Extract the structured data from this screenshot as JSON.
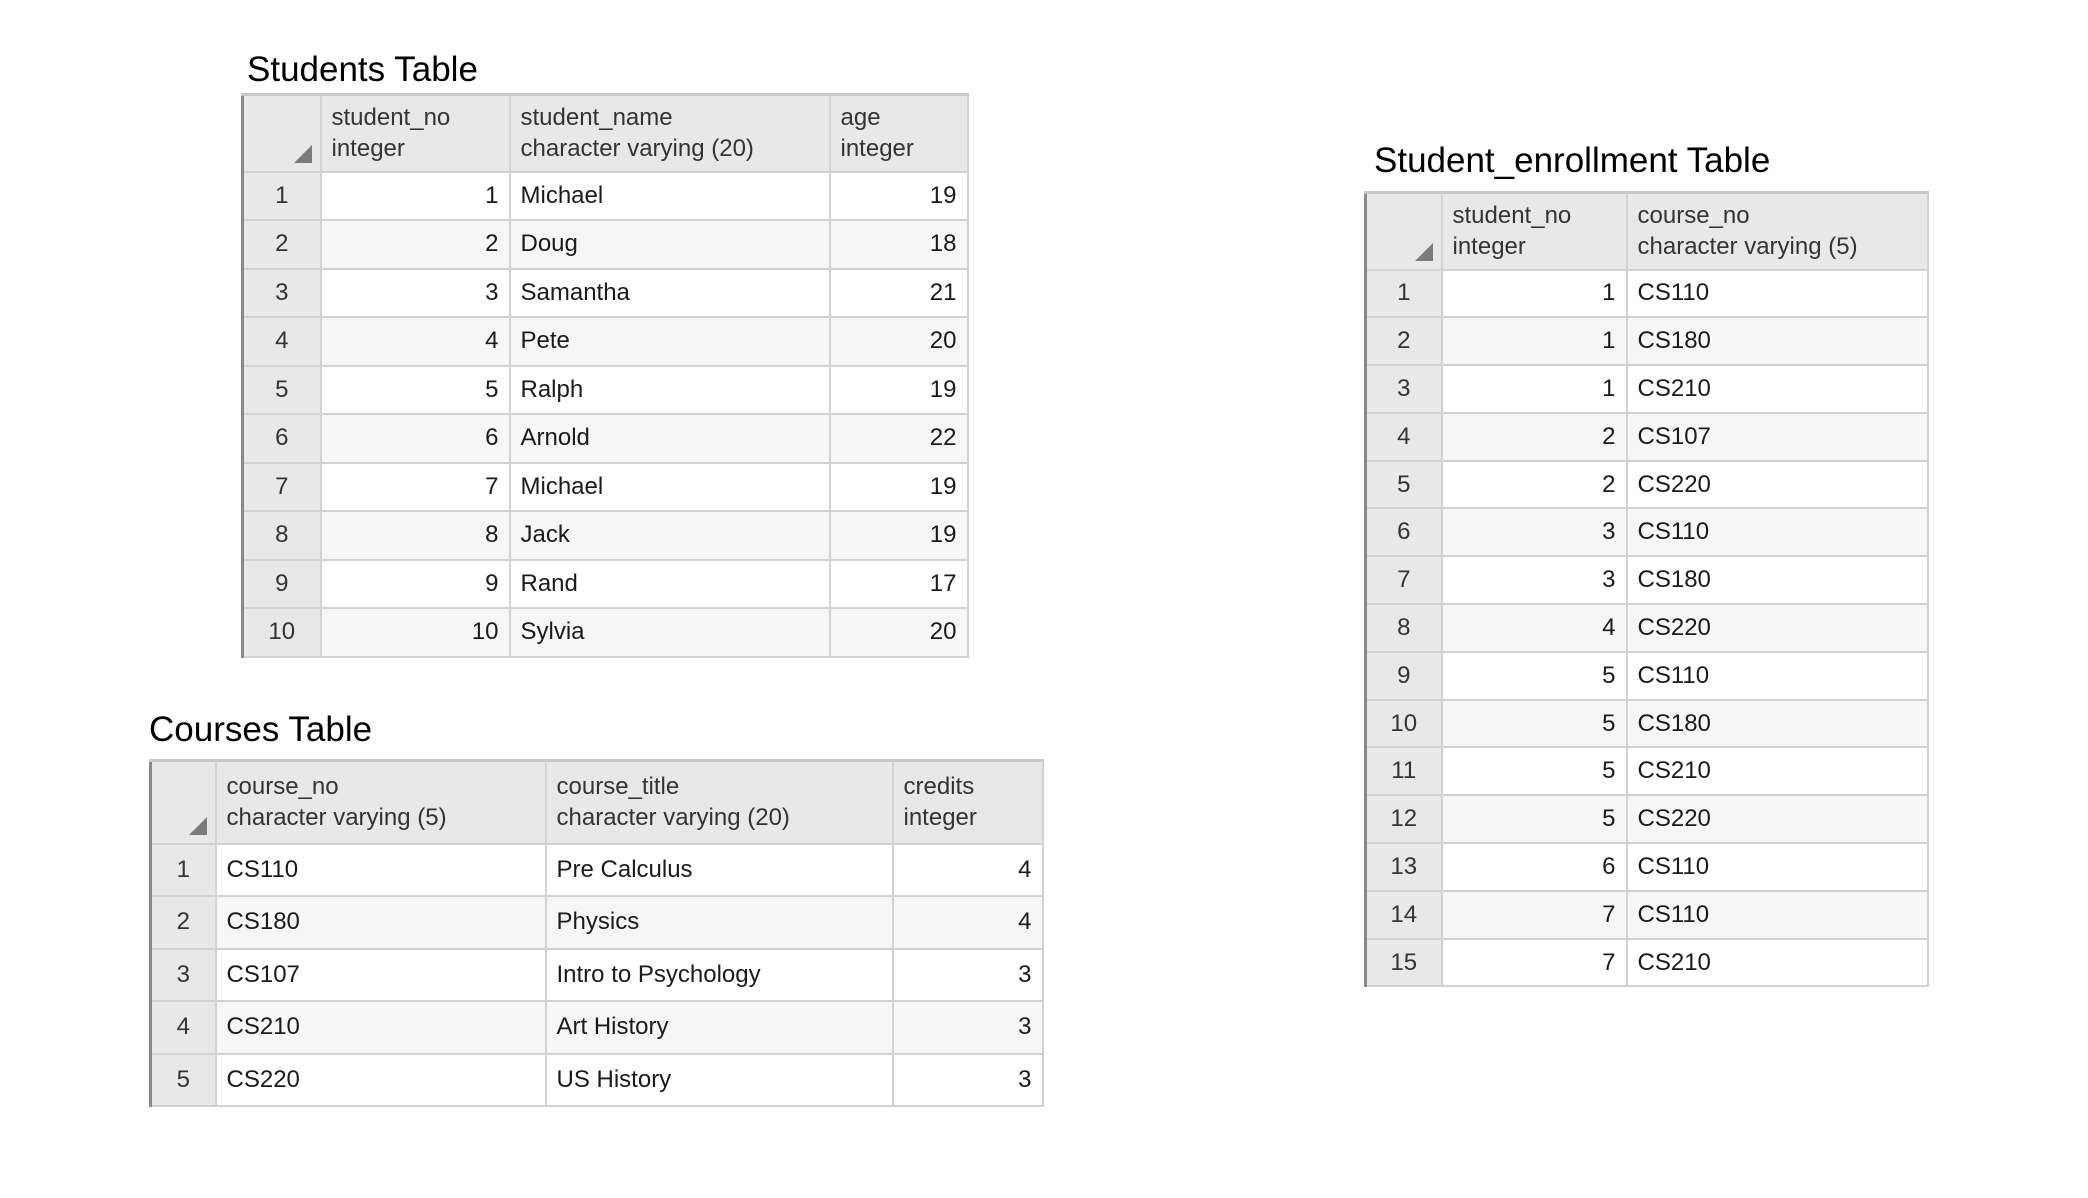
{
  "students": {
    "title": "Students Table",
    "columns": [
      {
        "name": "student_no",
        "type": "integer"
      },
      {
        "name": "student_name",
        "type": "character varying (20)"
      },
      {
        "name": "age",
        "type": "integer"
      }
    ],
    "rows": [
      {
        "row": "1",
        "student_no": "1",
        "student_name": "Michael",
        "age": "19"
      },
      {
        "row": "2",
        "student_no": "2",
        "student_name": "Doug",
        "age": "18"
      },
      {
        "row": "3",
        "student_no": "3",
        "student_name": "Samantha",
        "age": "21"
      },
      {
        "row": "4",
        "student_no": "4",
        "student_name": "Pete",
        "age": "20"
      },
      {
        "row": "5",
        "student_no": "5",
        "student_name": "Ralph",
        "age": "19"
      },
      {
        "row": "6",
        "student_no": "6",
        "student_name": "Arnold",
        "age": "22"
      },
      {
        "row": "7",
        "student_no": "7",
        "student_name": "Michael",
        "age": "19"
      },
      {
        "row": "8",
        "student_no": "8",
        "student_name": "Jack",
        "age": "19"
      },
      {
        "row": "9",
        "student_no": "9",
        "student_name": "Rand",
        "age": "17"
      },
      {
        "row": "10",
        "student_no": "10",
        "student_name": "Sylvia",
        "age": "20"
      }
    ]
  },
  "courses": {
    "title": "Courses Table",
    "columns": [
      {
        "name": "course_no",
        "type": "character varying (5)"
      },
      {
        "name": "course_title",
        "type": "character varying (20)"
      },
      {
        "name": "credits",
        "type": "integer"
      }
    ],
    "rows": [
      {
        "row": "1",
        "course_no": "CS110",
        "course_title": "Pre Calculus",
        "credits": "4"
      },
      {
        "row": "2",
        "course_no": "CS180",
        "course_title": "Physics",
        "credits": "4"
      },
      {
        "row": "3",
        "course_no": "CS107",
        "course_title": "Intro to Psychology",
        "credits": "3"
      },
      {
        "row": "4",
        "course_no": "CS210",
        "course_title": "Art History",
        "credits": "3"
      },
      {
        "row": "5",
        "course_no": "CS220",
        "course_title": "US History",
        "credits": "3"
      }
    ]
  },
  "enrollment": {
    "title": "Student_enrollment Table",
    "columns": [
      {
        "name": "student_no",
        "type": "integer"
      },
      {
        "name": "course_no",
        "type": "character varying (5)"
      }
    ],
    "rows": [
      {
        "row": "1",
        "student_no": "1",
        "course_no": "CS110"
      },
      {
        "row": "2",
        "student_no": "1",
        "course_no": "CS180"
      },
      {
        "row": "3",
        "student_no": "1",
        "course_no": "CS210"
      },
      {
        "row": "4",
        "student_no": "2",
        "course_no": "CS107"
      },
      {
        "row": "5",
        "student_no": "2",
        "course_no": "CS220"
      },
      {
        "row": "6",
        "student_no": "3",
        "course_no": "CS110"
      },
      {
        "row": "7",
        "student_no": "3",
        "course_no": "CS180"
      },
      {
        "row": "8",
        "student_no": "4",
        "course_no": "CS220"
      },
      {
        "row": "9",
        "student_no": "5",
        "course_no": "CS110"
      },
      {
        "row": "10",
        "student_no": "5",
        "course_no": "CS180"
      },
      {
        "row": "11",
        "student_no": "5",
        "course_no": "CS210"
      },
      {
        "row": "12",
        "student_no": "5",
        "course_no": "CS220"
      },
      {
        "row": "13",
        "student_no": "6",
        "course_no": "CS110"
      },
      {
        "row": "14",
        "student_no": "7",
        "course_no": "CS110"
      },
      {
        "row": "15",
        "student_no": "7",
        "course_no": "CS210"
      }
    ]
  }
}
